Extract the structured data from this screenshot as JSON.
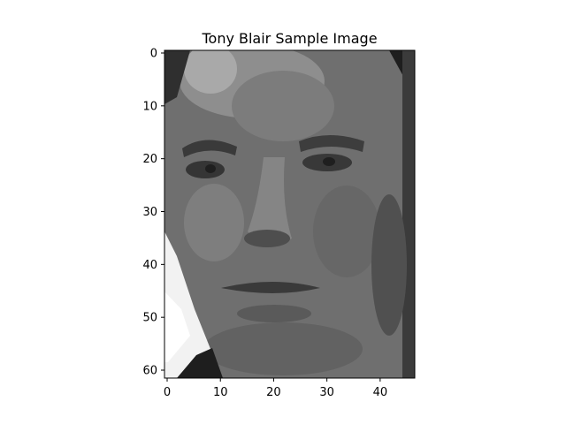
{
  "chart_data": {
    "type": "heatmap",
    "title": "Tony Blair Sample Image",
    "colormap": "gray",
    "image_shape": [
      62,
      47
    ],
    "xlim": [
      -0.5,
      46.5
    ],
    "ylim": [
      61.5,
      -0.5
    ],
    "x_ticks": [
      0,
      10,
      20,
      30,
      40
    ],
    "x_tick_labels": [
      "0",
      "10",
      "20",
      "30",
      "40"
    ],
    "y_ticks": [
      0,
      10,
      20,
      30,
      40,
      50,
      60
    ],
    "y_tick_labels": [
      "0",
      "10",
      "20",
      "30",
      "40",
      "50",
      "60"
    ],
    "xlabel": "",
    "ylabel": "",
    "grid": false,
    "legend": false
  }
}
